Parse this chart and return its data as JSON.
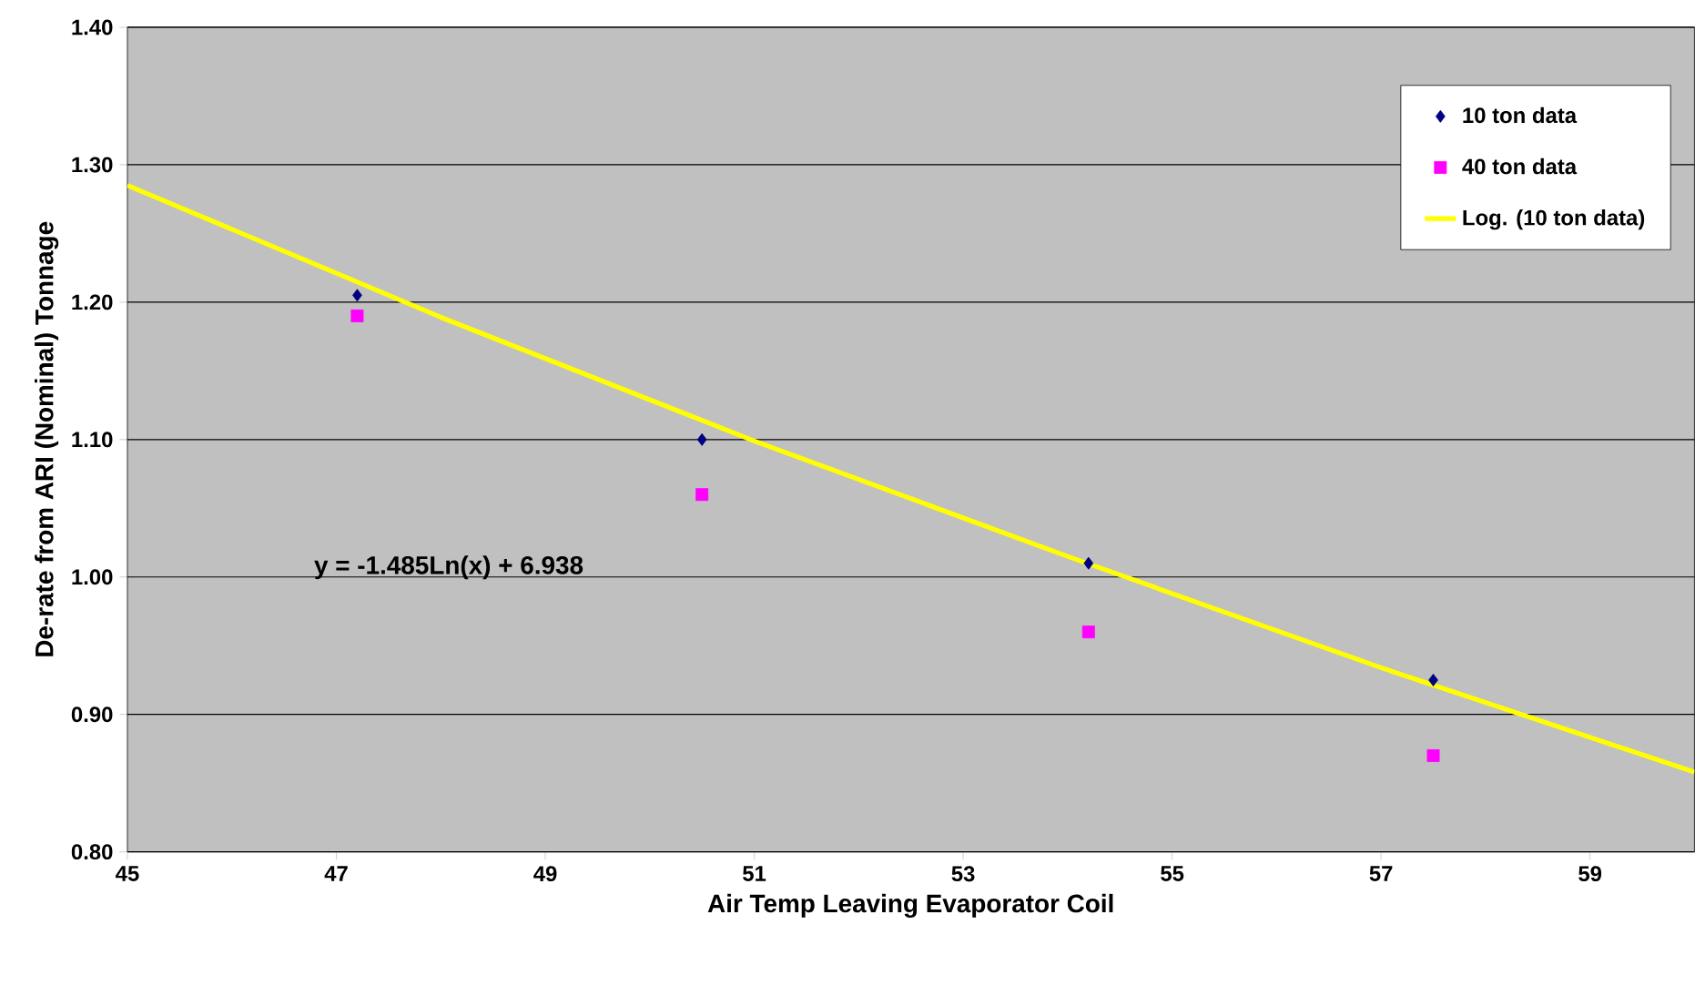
{
  "chart_data": {
    "type": "scatter",
    "xlabel": "Air Temp Leaving Evaporator Coil",
    "ylabel": "De-rate from ARI (Nominal) Tonnage",
    "annotations": [
      "y = -1.485Ln(x) + 6.938"
    ],
    "xlim": [
      45,
      60
    ],
    "xticks": [
      45,
      47,
      49,
      51,
      53,
      55,
      57,
      59
    ],
    "ylim": [
      0.8,
      1.4
    ],
    "yticks": [
      {
        "value": 0.8,
        "label": "0.80"
      },
      {
        "value": 0.9,
        "label": "0.90"
      },
      {
        "value": 1.0,
        "label": "1.00"
      },
      {
        "value": 1.1,
        "label": "1.10"
      },
      {
        "value": 1.2,
        "label": "1.20"
      },
      {
        "value": 1.3,
        "label": "1.30"
      },
      {
        "value": 1.4,
        "label": "1.40"
      }
    ],
    "grid": "y",
    "legend": "top right",
    "series": [
      {
        "name": "10 ton data",
        "marker": "diamond",
        "color": "#000080",
        "x": [
          47.2,
          50.5,
          54.2,
          57.5
        ],
        "values": [
          1.205,
          1.1,
          1.01,
          0.925
        ]
      },
      {
        "name": "40 ton data",
        "marker": "square",
        "color": "#ff00ff",
        "x": [
          47.2,
          50.5,
          54.2,
          57.5
        ],
        "values": [
          1.19,
          1.06,
          0.96,
          0.87
        ]
      },
      {
        "name": "Log. (10 ton data)",
        "type": "line",
        "marker": "none",
        "color": "#ffff00",
        "x": [
          45,
          48,
          51,
          54,
          57,
          60
        ],
        "values": [
          1.285,
          1.189,
          1.099,
          1.015,
          0.934,
          0.858
        ]
      }
    ]
  }
}
